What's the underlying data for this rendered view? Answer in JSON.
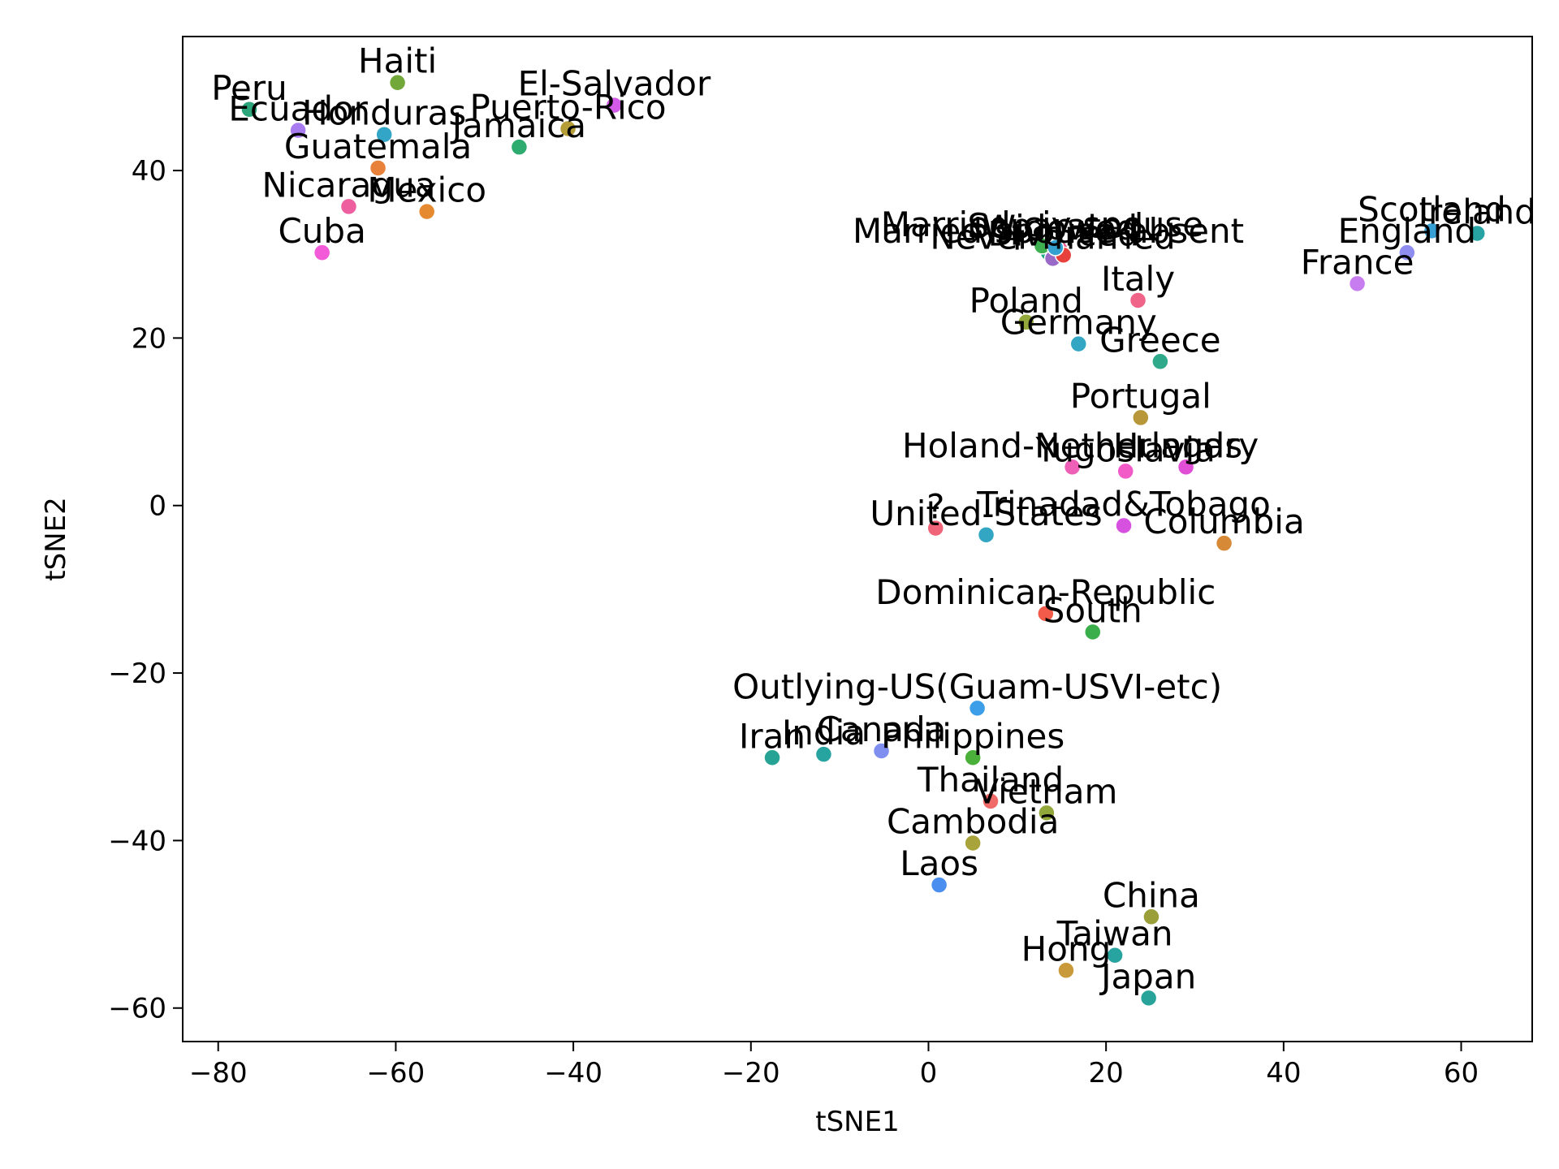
{
  "chart_data": {
    "type": "scatter",
    "title": "",
    "xlabel": "tSNE1",
    "ylabel": "tSNE2",
    "xlim": [
      -84,
      68
    ],
    "ylim": [
      -64,
      56
    ],
    "xticks": [
      -80,
      -60,
      -40,
      -20,
      0,
      20,
      40,
      60
    ],
    "yticks": [
      -60,
      -40,
      -20,
      0,
      20,
      40
    ],
    "grid": false,
    "points": [
      {
        "label": "Peru",
        "x": -76.5,
        "y": 47.3,
        "color": "#2ca57a"
      },
      {
        "label": "Ecuador",
        "x": -71,
        "y": 44.8,
        "color": "#a87cf0"
      },
      {
        "label": "Haiti",
        "x": -59.8,
        "y": 50.5,
        "color": "#72a83a"
      },
      {
        "label": "Honduras",
        "x": -61.3,
        "y": 44.3,
        "color": "#33a6c7"
      },
      {
        "label": "Guatemala",
        "x": -62,
        "y": 40.3,
        "color": "#e8813a"
      },
      {
        "label": "El-Salvador",
        "x": -35.4,
        "y": 47.8,
        "color": "#d15ae6"
      },
      {
        "label": "Puerto-Rico",
        "x": -40.6,
        "y": 45,
        "color": "#b59d37"
      },
      {
        "label": "Jamaica",
        "x": -46.1,
        "y": 42.8,
        "color": "#2eab6e"
      },
      {
        "label": "Nicaragua",
        "x": -65.3,
        "y": 35.7,
        "color": "#ee5fa0"
      },
      {
        "label": "Mexico",
        "x": -56.5,
        "y": 35.1,
        "color": "#e68a32"
      },
      {
        "label": "Cuba",
        "x": -68.3,
        "y": 30.2,
        "color": "#f25ad8"
      },
      {
        "label": "Married-spouse-absent",
        "x": 13.5,
        "y": 30.2,
        "color": "#1fa885"
      },
      {
        "label": "Never-married",
        "x": 14,
        "y": 29.5,
        "color": "#9a6ac9"
      },
      {
        "label": "Married-civ-spouse",
        "x": 12.8,
        "y": 31,
        "color": "#3fb050"
      },
      {
        "label": "Widowed",
        "x": 14.8,
        "y": 30.6,
        "color": "#e8558e"
      },
      {
        "label": "Divorced",
        "x": 15.2,
        "y": 29.9,
        "color": "#e8413c"
      },
      {
        "label": "Separated",
        "x": 14.3,
        "y": 30.8,
        "color": "#33a0d0"
      },
      {
        "label": "Scotland",
        "x": 56.7,
        "y": 32.8,
        "color": "#36a0d4"
      },
      {
        "label": "Ireland",
        "x": 61.8,
        "y": 32.5,
        "color": "#27a3a3"
      },
      {
        "label": "England",
        "x": 53.9,
        "y": 30.2,
        "color": "#8f8ef0"
      },
      {
        "label": "France",
        "x": 48.3,
        "y": 26.5,
        "color": "#c77cf0"
      },
      {
        "label": "Italy",
        "x": 23.6,
        "y": 24.5,
        "color": "#f0648a"
      },
      {
        "label": "Poland",
        "x": 11,
        "y": 21.9,
        "color": "#93a83a"
      },
      {
        "label": "Germany",
        "x": 16.9,
        "y": 19.3,
        "color": "#33a6c4"
      },
      {
        "label": "Greece",
        "x": 26.1,
        "y": 17.2,
        "color": "#2eaa8a"
      },
      {
        "label": "Portugal",
        "x": 23.9,
        "y": 10.5,
        "color": "#b8973a"
      },
      {
        "label": "Holand-Netherlands",
        "x": 16.2,
        "y": 4.6,
        "color": "#ee5fb8"
      },
      {
        "label": "Yugoslavia",
        "x": 22.2,
        "y": 4.1,
        "color": "#f25ac8"
      },
      {
        "label": "Hungary",
        "x": 29,
        "y": 4.6,
        "color": "#e14fd6"
      },
      {
        "label": "?",
        "x": 0.8,
        "y": -2.7,
        "color": "#f0647a"
      },
      {
        "label": "United-States",
        "x": 6.5,
        "y": -3.5,
        "color": "#33a6c4"
      },
      {
        "label": "Trinadad&Tobago",
        "x": 22,
        "y": -2.4,
        "color": "#d651e0"
      },
      {
        "label": "Columbia",
        "x": 33.3,
        "y": -4.5,
        "color": "#d68a38"
      },
      {
        "label": "Dominican-Republic",
        "x": 13.2,
        "y": -12.9,
        "color": "#f25a4a"
      },
      {
        "label": "South",
        "x": 18.5,
        "y": -15.1,
        "color": "#3aae4a"
      },
      {
        "label": "Outlying-US(Guam-USVI-etc)",
        "x": 5.5,
        "y": -24.2,
        "color": "#3c9ee8"
      },
      {
        "label": "Iran",
        "x": -17.6,
        "y": -30.1,
        "color": "#27a396"
      },
      {
        "label": "India",
        "x": -11.8,
        "y": -29.7,
        "color": "#27a3a0"
      },
      {
        "label": "Canada",
        "x": -5.3,
        "y": -29.3,
        "color": "#7f8ff0"
      },
      {
        "label": "Philippines",
        "x": 5,
        "y": -30.1,
        "color": "#4ab03a"
      },
      {
        "label": "Thailand",
        "x": 7,
        "y": -35.3,
        "color": "#f06a6a"
      },
      {
        "label": "Vietnam",
        "x": 13.3,
        "y": -36.7,
        "color": "#93a83a"
      },
      {
        "label": "Cambodia",
        "x": 5,
        "y": -40.3,
        "color": "#a8a33a"
      },
      {
        "label": "Laos",
        "x": 1.2,
        "y": -45.3,
        "color": "#4a8ef0"
      },
      {
        "label": "China",
        "x": 25.1,
        "y": -49.1,
        "color": "#9a9f3a"
      },
      {
        "label": "Taiwan",
        "x": 21,
        "y": -53.7,
        "color": "#27a3a0"
      },
      {
        "label": "Hong",
        "x": 15.5,
        "y": -55.5,
        "color": "#c99a3a"
      },
      {
        "label": "Japan",
        "x": 24.8,
        "y": -58.8,
        "color": "#27a39a"
      }
    ]
  }
}
